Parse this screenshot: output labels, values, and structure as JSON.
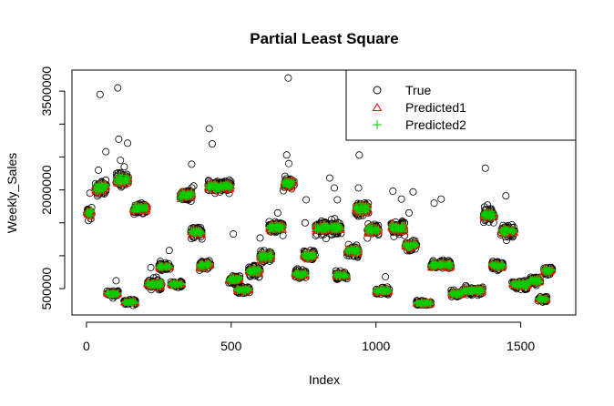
{
  "chart_data": {
    "type": "scatter",
    "title": "Partial Least Square",
    "xlabel": "Index",
    "ylabel": "Weekly_Sales",
    "xlim": [
      -50,
      1690
    ],
    "ylim": [
      100000,
      3820000
    ],
    "x_ticks": [
      0,
      500,
      1000,
      1500
    ],
    "y_ticks": [
      500000,
      2000000,
      3500000
    ],
    "grid": false,
    "legend_position": "top-right",
    "series": [
      {
        "name": "True",
        "marker": "circle",
        "color": "#000000"
      },
      {
        "name": "Predicted1",
        "marker": "triangle",
        "color": "#ff0000"
      },
      {
        "name": "Predicted2",
        "marker": "plus",
        "color": "#00cc00"
      }
    ],
    "clusters": [
      {
        "x0": 0,
        "x1": 20,
        "pred": 1650000,
        "spread": 130000,
        "outliers": [
          1950000
        ]
      },
      {
        "x0": 30,
        "x1": 70,
        "pred": 2030000,
        "spread": 160000,
        "outliers": [
          3450000,
          2580000,
          2300000
        ]
      },
      {
        "x0": 70,
        "x1": 110,
        "pred": 420000,
        "spread": 60000,
        "outliers": [
          620000
        ]
      },
      {
        "x0": 100,
        "x1": 145,
        "pred": 2150000,
        "spread": 150000,
        "outliers": [
          3550000,
          2770000,
          2710000,
          2450000,
          2350000
        ]
      },
      {
        "x0": 130,
        "x1": 170,
        "pred": 290000,
        "spread": 50000,
        "outliers": []
      },
      {
        "x0": 160,
        "x1": 210,
        "pred": 1720000,
        "spread": 130000,
        "outliers": []
      },
      {
        "x0": 210,
        "x1": 260,
        "pred": 570000,
        "spread": 110000,
        "outliers": [
          820000
        ]
      },
      {
        "x0": 250,
        "x1": 290,
        "pred": 830000,
        "spread": 80000,
        "outliers": [
          1080000
        ]
      },
      {
        "x0": 290,
        "x1": 330,
        "pred": 570000,
        "spread": 60000,
        "outliers": []
      },
      {
        "x0": 320,
        "x1": 365,
        "pred": 1920000,
        "spread": 130000,
        "outliers": [
          2390000
        ]
      },
      {
        "x0": 360,
        "x1": 400,
        "pred": 1360000,
        "spread": 110000,
        "outliers": [
          2060000
        ]
      },
      {
        "x0": 390,
        "x1": 430,
        "pred": 860000,
        "spread": 90000,
        "outliers": []
      },
      {
        "x0": 420,
        "x1": 500,
        "pred": 2050000,
        "spread": 130000,
        "outliers": [
          2930000,
          2700000
        ]
      },
      {
        "x0": 490,
        "x1": 530,
        "pred": 640000,
        "spread": 90000,
        "outliers": [
          1330000
        ]
      },
      {
        "x0": 520,
        "x1": 565,
        "pred": 480000,
        "spread": 70000,
        "outliers": []
      },
      {
        "x0": 560,
        "x1": 600,
        "pred": 770000,
        "spread": 130000,
        "outliers": [
          1270000
        ]
      },
      {
        "x0": 600,
        "x1": 640,
        "pred": 990000,
        "spread": 130000,
        "outliers": []
      },
      {
        "x0": 630,
        "x1": 680,
        "pred": 1430000,
        "spread": 130000,
        "outliers": [
          1650000
        ]
      },
      {
        "x0": 680,
        "x1": 720,
        "pred": 2100000,
        "spread": 130000,
        "outliers": [
          3700000,
          2530000,
          2400000
        ]
      },
      {
        "x0": 720,
        "x1": 760,
        "pred": 720000,
        "spread": 100000,
        "outliers": []
      },
      {
        "x0": 750,
        "x1": 790,
        "pred": 1000000,
        "spread": 120000,
        "outliers": [
          1500000,
          1850000
        ]
      },
      {
        "x0": 790,
        "x1": 880,
        "pred": 1420000,
        "spread": 150000,
        "outliers": [
          2180000,
          2030000,
          1850000
        ]
      },
      {
        "x0": 860,
        "x1": 900,
        "pred": 700000,
        "spread": 90000,
        "outliers": []
      },
      {
        "x0": 900,
        "x1": 940,
        "pred": 1080000,
        "spread": 130000,
        "outliers": [
          1600000
        ]
      },
      {
        "x0": 930,
        "x1": 975,
        "pred": 1720000,
        "spread": 150000,
        "outliers": [
          2530000,
          2030000
        ]
      },
      {
        "x0": 970,
        "x1": 1010,
        "pred": 1400000,
        "spread": 130000,
        "outliers": []
      },
      {
        "x0": 1000,
        "x1": 1050,
        "pred": 470000,
        "spread": 80000,
        "outliers": [
          680000
        ]
      },
      {
        "x0": 1050,
        "x1": 1100,
        "pred": 1420000,
        "spread": 150000,
        "outliers": [
          1980000,
          1860000
        ]
      },
      {
        "x0": 1100,
        "x1": 1140,
        "pred": 1150000,
        "spread": 110000,
        "outliers": [
          1970000,
          1650000
        ]
      },
      {
        "x0": 1140,
        "x1": 1190,
        "pred": 280000,
        "spread": 50000,
        "outliers": []
      },
      {
        "x0": 1190,
        "x1": 1260,
        "pred": 860000,
        "spread": 100000,
        "outliers": [
          1860000,
          1800000
        ]
      },
      {
        "x0": 1260,
        "x1": 1300,
        "pred": 420000,
        "spread": 80000,
        "outliers": []
      },
      {
        "x0": 1300,
        "x1": 1370,
        "pred": 470000,
        "spread": 90000,
        "outliers": []
      },
      {
        "x0": 1370,
        "x1": 1410,
        "pred": 1620000,
        "spread": 150000,
        "outliers": [
          2330000
        ]
      },
      {
        "x0": 1400,
        "x1": 1440,
        "pred": 850000,
        "spread": 90000,
        "outliers": []
      },
      {
        "x0": 1430,
        "x1": 1480,
        "pred": 1370000,
        "spread": 130000,
        "outliers": [
          1910000
        ]
      },
      {
        "x0": 1470,
        "x1": 1530,
        "pred": 560000,
        "spread": 90000,
        "outliers": []
      },
      {
        "x0": 1530,
        "x1": 1570,
        "pred": 620000,
        "spread": 90000,
        "outliers": []
      },
      {
        "x0": 1560,
        "x1": 1590,
        "pred": 340000,
        "spread": 60000,
        "outliers": []
      },
      {
        "x0": 1580,
        "x1": 1610,
        "pred": 770000,
        "spread": 80000,
        "outliers": []
      }
    ]
  }
}
